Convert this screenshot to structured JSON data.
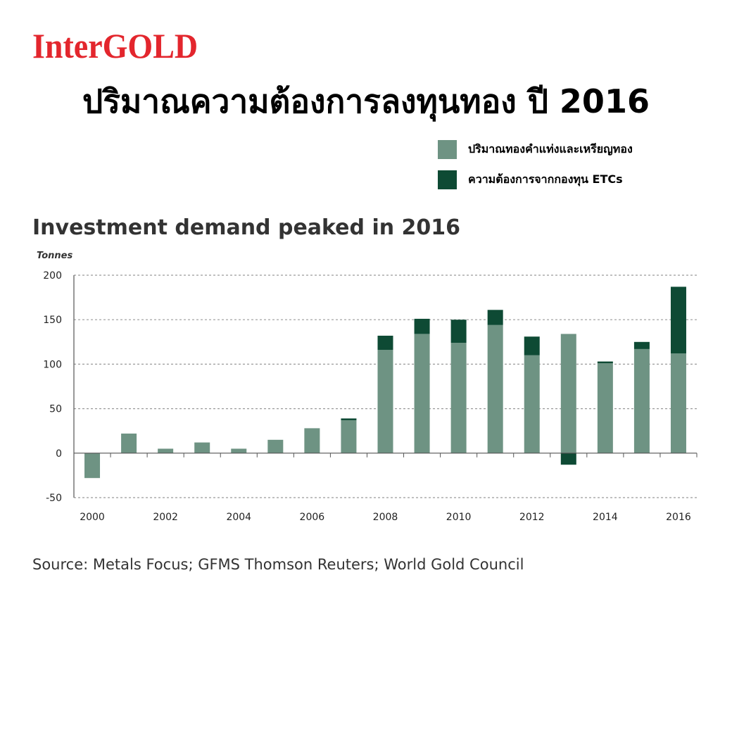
{
  "brand": {
    "text": "InterGOLD",
    "color": "#e3262d"
  },
  "header": {
    "title": "ปริมาณความต้องการลงทุนทอง ปี 2016"
  },
  "legend": [
    {
      "label": "ปริมาณทองคำแท่งและเหรียญทอง",
      "color": "#6e9383"
    },
    {
      "label": "ความต้องการจากกองทุน ETCs",
      "color": "#0e4a34"
    }
  ],
  "chart_data": {
    "type": "bar",
    "stacked": true,
    "title": "Investment demand peaked in 2016",
    "ylabel": "Tonnes",
    "xlabel": "",
    "ylim": [
      -50,
      200
    ],
    "yticks": [
      200,
      150,
      100,
      50,
      0,
      -50
    ],
    "x": [
      2000,
      2001,
      2002,
      2003,
      2004,
      2005,
      2006,
      2007,
      2008,
      2009,
      2010,
      2011,
      2012,
      2013,
      2014,
      2015,
      2016
    ],
    "xtick_labels": [
      "2000",
      "2002",
      "2004",
      "2006",
      "2008",
      "2010",
      "2012",
      "2014",
      "2016"
    ],
    "grid": true,
    "series": [
      {
        "name": "ปริมาณทองคำแท่งและเหรียญทอง",
        "color": "#6e9383",
        "values": [
          -28,
          22,
          5,
          12,
          5,
          15,
          28,
          37,
          116,
          134,
          124,
          144,
          110,
          134,
          101,
          117,
          112
        ]
      },
      {
        "name": "ความต้องการจากกองทุน ETCs",
        "color": "#0e4a34",
        "values": [
          0,
          0,
          0,
          0,
          0,
          0,
          0,
          2,
          16,
          17,
          26,
          17,
          21,
          -13,
          2,
          8,
          75
        ]
      }
    ]
  },
  "source": {
    "text": "Source: Metals Focus; GFMS Thomson Reuters; World Gold Council"
  }
}
